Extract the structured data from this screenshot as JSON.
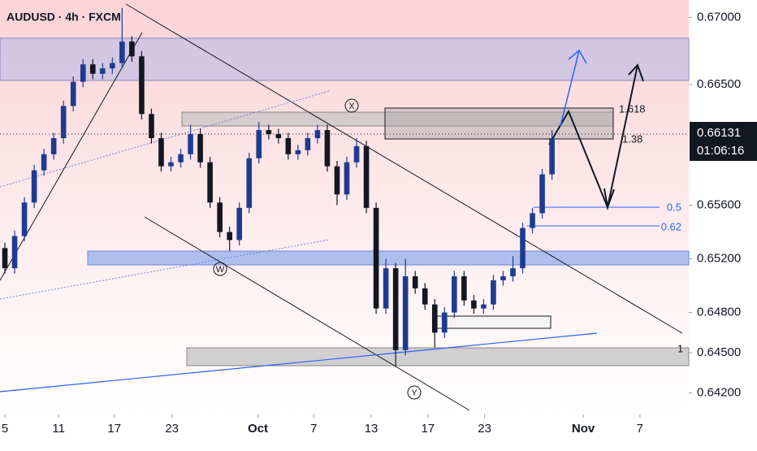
{
  "chart_data": {
    "type": "candlestick",
    "title": "AUDUSD · 4h · FXCM",
    "last_price": {
      "value": 0.66131,
      "label": "0.66131"
    },
    "countdown": "01:06:16",
    "annotations": [
      "1.618",
      "1.38",
      "0.5",
      "0.62",
      "1",
      "X",
      "W",
      "Y"
    ],
    "up_color": "#1f3b8f",
    "down_color": "#131722",
    "xlim": [
      -0.5,
      70
    ],
    "xticks": [
      {
        "value": 0,
        "label": "5"
      },
      {
        "value": 5.5,
        "label": "11"
      },
      {
        "value": 11.2,
        "label": "17"
      },
      {
        "value": 17.1,
        "label": "23"
      },
      {
        "value": 25.9,
        "label": "Oct"
      },
      {
        "value": 31.6,
        "label": "7"
      },
      {
        "value": 37.5,
        "label": "13"
      },
      {
        "value": 43.3,
        "label": "17"
      },
      {
        "value": 49.1,
        "label": "23"
      },
      {
        "value": 59.2,
        "label": "Nov"
      },
      {
        "value": 65,
        "label": "7"
      }
    ],
    "ylim": [
      0.6404,
      0.6713
    ],
    "yticks": [
      {
        "value": 0.67,
        "label": "0.67000"
      },
      {
        "value": 0.665,
        "label": "0.66500"
      },
      {
        "value": 0.656,
        "label": "0.65600"
      },
      {
        "value": 0.652,
        "label": "0.65200"
      },
      {
        "value": 0.648,
        "label": "0.64800"
      },
      {
        "value": 0.645,
        "label": "0.64500"
      },
      {
        "value": 0.642,
        "label": "0.64200"
      }
    ],
    "open": [
      0.6528,
      0.6513,
      0.6537,
      0.6562,
      0.6586,
      0.6598,
      0.661,
      0.6634,
      0.6652,
      0.6665,
      0.6658,
      0.6662,
      0.6666,
      0.6682,
      0.6671,
      0.6628,
      0.661,
      0.6589,
      0.6592,
      0.6598,
      0.6613,
      0.6592,
      0.6562,
      0.654,
      0.6534,
      0.6558,
      0.6595,
      0.6616,
      0.6613,
      0.661,
      0.6598,
      0.6601,
      0.661,
      0.6616,
      0.6589,
      0.6568,
      0.6592,
      0.6604,
      0.6558,
      0.6483,
      0.6513,
      0.6452,
      0.6507,
      0.6498,
      0.6486,
      0.6465,
      0.648,
      0.6507,
      0.6489,
      0.6483,
      0.6486,
      0.6504,
      0.6507,
      0.6513,
      0.6543,
      0.6554,
      0.6583
    ],
    "high": [
      0.6532,
      0.6541,
      0.6566,
      0.659,
      0.6602,
      0.6614,
      0.6638,
      0.6656,
      0.6669,
      0.6669,
      0.6666,
      0.667,
      0.6707,
      0.6686,
      0.6675,
      0.6632,
      0.6614,
      0.6596,
      0.6602,
      0.662,
      0.6617,
      0.6596,
      0.6566,
      0.6544,
      0.6562,
      0.6599,
      0.6622,
      0.662,
      0.6617,
      0.6614,
      0.6605,
      0.6614,
      0.662,
      0.662,
      0.6593,
      0.6596,
      0.661,
      0.6608,
      0.6562,
      0.652,
      0.6517,
      0.652,
      0.6511,
      0.6502,
      0.649,
      0.6484,
      0.6511,
      0.6511,
      0.6493,
      0.649,
      0.6508,
      0.6511,
      0.6522,
      0.6547,
      0.6558,
      0.6587,
      0.6616
    ],
    "low": [
      0.6509,
      0.6509,
      0.6533,
      0.6558,
      0.6582,
      0.6594,
      0.6606,
      0.663,
      0.6648,
      0.6654,
      0.6654,
      0.6658,
      0.6662,
      0.6667,
      0.6624,
      0.6606,
      0.6585,
      0.6585,
      0.6588,
      0.6594,
      0.6588,
      0.6558,
      0.6536,
      0.6526,
      0.653,
      0.6554,
      0.6591,
      0.6609,
      0.6606,
      0.6594,
      0.6594,
      0.6597,
      0.6606,
      0.6585,
      0.656,
      0.6564,
      0.6588,
      0.6554,
      0.6479,
      0.6479,
      0.644,
      0.6448,
      0.6494,
      0.6482,
      0.6454,
      0.6461,
      0.6476,
      0.6485,
      0.6479,
      0.6479,
      0.6482,
      0.65,
      0.6503,
      0.6509,
      0.6539,
      0.655,
      0.6579
    ],
    "close": [
      0.6513,
      0.6537,
      0.6562,
      0.6586,
      0.6598,
      0.661,
      0.6634,
      0.6652,
      0.6665,
      0.6658,
      0.6662,
      0.6666,
      0.6682,
      0.6671,
      0.6628,
      0.661,
      0.6589,
      0.6592,
      0.6598,
      0.6613,
      0.6592,
      0.6562,
      0.654,
      0.6534,
      0.6558,
      0.6595,
      0.6616,
      0.6613,
      0.661,
      0.6598,
      0.6601,
      0.661,
      0.6616,
      0.6589,
      0.6568,
      0.6592,
      0.6604,
      0.6558,
      0.6483,
      0.6513,
      0.6452,
      0.6507,
      0.6498,
      0.6486,
      0.6465,
      0.648,
      0.6507,
      0.6489,
      0.6483,
      0.6486,
      0.6504,
      0.6507,
      0.6513,
      0.6543,
      0.6554,
      0.6583,
      0.661
    ]
  }
}
